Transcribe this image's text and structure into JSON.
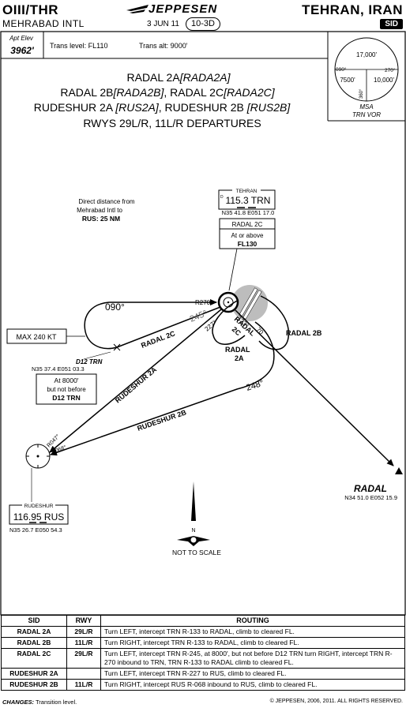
{
  "header": {
    "icao_id": "OIII/THR",
    "airport": "MEHRABAD INTL",
    "brand": "JEPPESEN",
    "date": "3 JUN 11",
    "index": "10-3D",
    "city": "TEHRAN, IRAN",
    "chart_type": "SID"
  },
  "info": {
    "apt_elev_label": "Apt Elev",
    "apt_elev_value": "3962'",
    "trans_level": "Trans level: FL110",
    "trans_alt": "Trans alt: 9000'"
  },
  "msa": {
    "top_alt": "17,000'",
    "left_alt": "7500'",
    "right_alt": "10,000'",
    "brg_090": "090°",
    "brg_270": "270°",
    "brg_360": "360°",
    "label": "MSA",
    "fix": "TRN VOR"
  },
  "title": {
    "line1": "RADAL 2A",
    "line1_code": "[RADA2A]",
    "line2": "RADAL 2B",
    "line2_code": "[RADA2B]",
    "line2b": ", RADAL 2C",
    "line2b_code": "[RADA2C]",
    "line3a": "RUDESHUR 2A",
    "line3a_code": "[RUS2A]",
    "line3b": ", RUDESHUR 2B",
    "line3b_code": "[RUS2B]",
    "line4": "RWYS 29L/R, 11L/R DEPARTURES"
  },
  "notes": {
    "direct1": "Direct distance from",
    "direct2": "Mehrabad Intl to",
    "direct3": "RUS: 25 NM",
    "max_speed": "MAX 240 KT",
    "not_to_scale": "NOT TO SCALE"
  },
  "navaids": {
    "trn_name": "TEHRAN",
    "trn_freq": "115.3 TRN",
    "trn_coord": "N35 41.8 E051 17.0",
    "rus_name": "RUDESHUR",
    "rus_freq": "116.95 RUS",
    "rus_coord": "N35 26.7 E050 54.3",
    "d12_name": "D12 TRN",
    "d12_coord": "N35 37.4 E051 03.3",
    "radal_name": "RADAL",
    "radal_coord": "N34 51.0 E052 15.9"
  },
  "constraints": {
    "r2c_title": "RADAL 2C",
    "r2c_line1": "At or above",
    "r2c_line2": "FL130",
    "d12_line1": "At 8000'",
    "d12_line2": "but not before",
    "d12_line3": "D12 TRN"
  },
  "route_labels": {
    "hdg_090": "090°",
    "r270": "R270°",
    "r245": "245°",
    "r227": "227°",
    "r133": "133°",
    "dist70": "70",
    "radal_2c": "RADAL 2C",
    "rudeshur_2a": "RUDESHUR 2A",
    "rudeshur_2b": "RUDESHUR 2B",
    "radal_2b": "RADAL 2B",
    "radal_2a": "RADAL",
    "radal_2a_b": "2A",
    "radal_2c_path": "RADAL",
    "radal_2c_path_b": "2C",
    "brg_248": "248°",
    "r047": "R047°",
    "r068": "R068°"
  },
  "routing_table": {
    "headers": [
      "SID",
      "RWY",
      "ROUTING"
    ],
    "rows": [
      [
        "RADAL 2A",
        "29L/R",
        "Turn LEFT, intercept TRN R-133 to RADAL, climb to cleared FL."
      ],
      [
        "RADAL 2B",
        "11L/R",
        "Turn RIGHT, intercept TRN R-133 to RADAL, climb to cleared FL."
      ],
      [
        "RADAL 2C",
        "29L/R",
        "Turn LEFT, intercept TRN R-245, at 8000', but not before D12 TRN turn RIGHT, intercept TRN R-270 inbound to TRN, TRN R-133 to RADAL climb to cleared FL."
      ],
      [
        "RUDESHUR 2A",
        "",
        "Turn LEFT, intercept TRN R-227 to RUS, climb to cleared FL."
      ],
      [
        "RUDESHUR 2B",
        "11L/R",
        "Turn RIGHT, intercept RUS R-068 inbound to RUS, climb to cleared FL."
      ]
    ]
  },
  "footer": {
    "changes_label": "CHANGES:",
    "changes_text": "Transition level.",
    "copyright": "© JEPPESEN, 2006, 2011. ALL RIGHTS RESERVED."
  }
}
